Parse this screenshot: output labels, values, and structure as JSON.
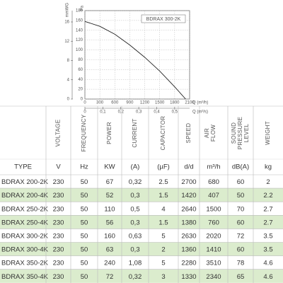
{
  "chart": {
    "type": "line",
    "label": "BDRAX 300-2K",
    "pa_label": "Pa",
    "mmwg_label": "mmWG",
    "qh_label": "Q (m³/h)",
    "qs_label": "Q (m³/s)",
    "x": [
      0,
      300,
      600,
      900,
      1200,
      1500,
      1800,
      2020
    ],
    "values": [
      158,
      148,
      132,
      110,
      85,
      57,
      25,
      0
    ],
    "xlim": [
      0,
      2100
    ],
    "ylim": [
      0,
      180
    ],
    "xticks": [
      0,
      300,
      600,
      900,
      1200,
      1500,
      1800,
      2100
    ],
    "yticks": [
      0,
      20,
      40,
      60,
      80,
      100,
      120,
      140,
      160,
      180
    ],
    "mmwg_ticks": [
      0,
      4,
      8,
      12,
      16
    ],
    "qs_ticks": [
      {
        "value": 0,
        "label": "0"
      },
      {
        "value": 0.1,
        "label": "0,1"
      },
      {
        "value": 0.2,
        "label": "0,2"
      },
      {
        "value": 0.3,
        "label": "0,3"
      },
      {
        "value": 0.4,
        "label": "0,4"
      },
      {
        "value": 0.5,
        "label": "0,5"
      }
    ]
  },
  "table": {
    "headers": [
      "VOLTAGE",
      "FREQUENCY",
      "POWER",
      "CURRENT",
      "CAPACITOR",
      "SPEED",
      "AIR FLOW",
      "SOUND PRESSURE LEVEL",
      "WEIGHT"
    ],
    "units": [
      "TYPE",
      "V",
      "Hz",
      "KW",
      "(A)",
      "(µF)",
      "d/d",
      "m³/h",
      "dB(A)",
      "kg"
    ],
    "rows": [
      [
        "BDRAX 200-2K",
        "230",
        "50",
        "67",
        "0,32",
        "2.5",
        "2700",
        "680",
        "60",
        "2"
      ],
      [
        "BDRAX 200-4K",
        "230",
        "50",
        "52",
        "0,3",
        "1.5",
        "1420",
        "407",
        "50",
        "2.2"
      ],
      [
        "BDRAX 250-2K",
        "230",
        "50",
        "110",
        "0,5",
        "4",
        "2640",
        "1500",
        "70",
        "2.7"
      ],
      [
        "BDRAX 250-4K",
        "230",
        "50",
        "56",
        "0,3",
        "1.5",
        "1380",
        "760",
        "60",
        "2.7"
      ],
      [
        "BDRAX 300-2K",
        "230",
        "50",
        "160",
        "0,63",
        "5",
        "2630",
        "2020",
        "72",
        "3.5"
      ],
      [
        "BDRAX 300-4K",
        "230",
        "50",
        "63",
        "0,3",
        "2",
        "1360",
        "1410",
        "60",
        "3.5"
      ],
      [
        "BDRAX 350-2K",
        "230",
        "50",
        "240",
        "1,08",
        "5",
        "2280",
        "3510",
        "78",
        "4.6"
      ],
      [
        "BDRAX 350-4K",
        "230",
        "50",
        "72",
        "0,32",
        "3",
        "1330",
        "2340",
        "65",
        "4.6"
      ]
    ]
  }
}
